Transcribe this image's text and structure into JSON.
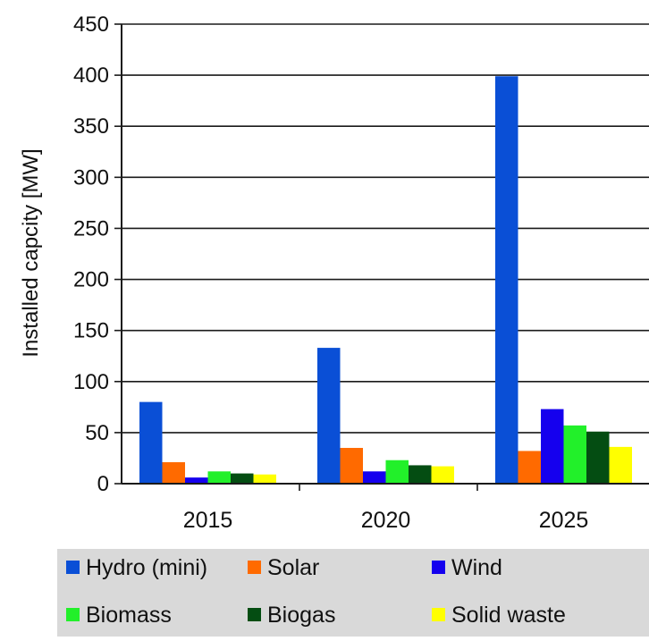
{
  "chart_data": {
    "type": "bar",
    "categories": [
      "2015",
      "2020",
      "2025"
    ],
    "series": [
      {
        "name": "Hydro (mini)",
        "color": "#0a4fd6",
        "values": [
          80,
          133,
          399
        ]
      },
      {
        "name": "Solar",
        "color": "#ff6a00",
        "values": [
          21,
          35,
          32
        ]
      },
      {
        "name": "Wind",
        "color": "#1500ee",
        "values": [
          6,
          12,
          73
        ]
      },
      {
        "name": "Biomass",
        "color": "#22f02a",
        "values": [
          12,
          23,
          57
        ]
      },
      {
        "name": "Biogas",
        "color": "#044d12",
        "values": [
          10,
          18,
          51
        ]
      },
      {
        "name": "Solid waste",
        "color": "#ffff00",
        "values": [
          9,
          17,
          36
        ]
      }
    ],
    "title": "",
    "xlabel": "",
    "ylabel": "Installed capcity [MW]",
    "ylim": [
      0,
      450
    ],
    "yticks": [
      0,
      50,
      100,
      150,
      200,
      250,
      300,
      350,
      400,
      450
    ],
    "grid": true,
    "legend_position": "bottom"
  }
}
